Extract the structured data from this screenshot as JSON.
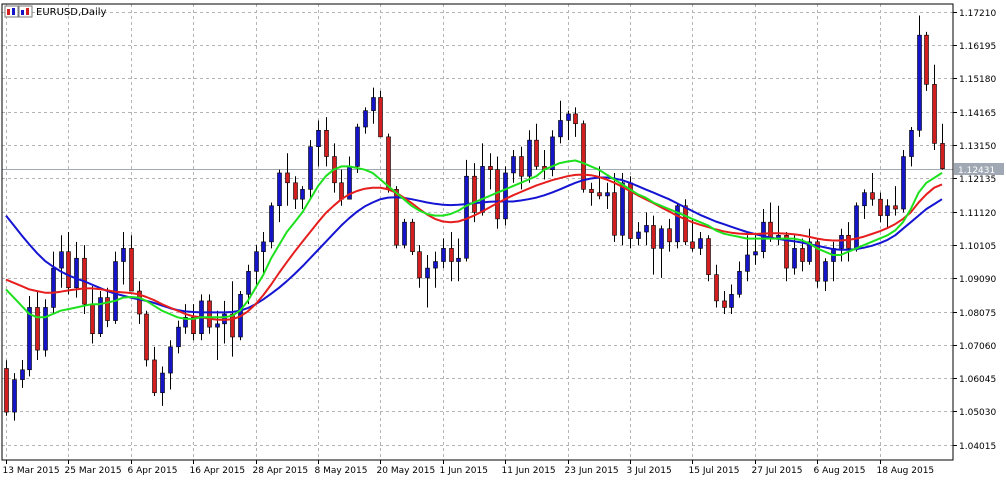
{
  "window": {
    "symbol_title": "EURUSD,Daily",
    "icon": "chart-window-icon"
  },
  "colors": {
    "background": "#ffffff",
    "grid": "#b4b4b4",
    "bull": "#1414c8",
    "bear": "#d21e1e",
    "ma_fast": "#1ee11e",
    "ma_mid": "#e61e1e",
    "ma_slow": "#1414d2",
    "price_line": "#a0a8b4",
    "price_tag_bg": "#a0a8b4",
    "price_tag_text": "#ffffff",
    "text": "#000000"
  },
  "chart_data": {
    "type": "candlestick",
    "title": "EURUSD,Daily",
    "ylim": [
      1.0355,
      1.1745
    ],
    "y_ticks": [
      "1.17210",
      "1.16195",
      "1.15180",
      "1.14165",
      "1.13150",
      "1.12135",
      "1.11120",
      "1.10105",
      "1.09090",
      "1.08075",
      "1.07060",
      "1.06045",
      "1.05030",
      "1.04015"
    ],
    "x_ticks": [
      {
        "label": "13 Mar 2015",
        "bar": 0
      },
      {
        "label": "25 Mar 2015",
        "bar": 8
      },
      {
        "label": "6 Apr 2015",
        "bar": 16
      },
      {
        "label": "16 Apr 2015",
        "bar": 24
      },
      {
        "label": "28 Apr 2015",
        "bar": 32
      },
      {
        "label": "8 May 2015",
        "bar": 40
      },
      {
        "label": "20 May 2015",
        "bar": 48
      },
      {
        "label": "1 Jun 2015",
        "bar": 56
      },
      {
        "label": "11 Jun 2015",
        "bar": 64
      },
      {
        "label": "23 Jun 2015",
        "bar": 72
      },
      {
        "label": "3 Jul 2015",
        "bar": 80
      },
      {
        "label": "15 Jul 2015",
        "bar": 88
      },
      {
        "label": "27 Jul 2015",
        "bar": 96
      },
      {
        "label": "6 Aug 2015",
        "bar": 104
      },
      {
        "label": "18 Aug 2015",
        "bar": 112
      }
    ],
    "current_price": 1.12431,
    "current_price_label": "1.12431",
    "grid": true,
    "candles": [
      [
        1.0634,
        1.0659,
        1.049,
        1.0501
      ],
      [
        1.0501,
        1.062,
        1.0475,
        1.06
      ],
      [
        1.06,
        1.066,
        1.0575,
        1.063
      ],
      [
        1.063,
        1.0855,
        1.061,
        1.082
      ],
      [
        1.082,
        1.087,
        1.066,
        1.069
      ],
      [
        1.069,
        1.0845,
        1.067,
        1.082
      ],
      [
        1.082,
        1.099,
        1.08,
        1.094
      ],
      [
        1.094,
        1.104,
        1.088,
        1.099
      ],
      [
        1.099,
        1.105,
        1.086,
        1.088
      ],
      [
        1.088,
        1.102,
        1.085,
        1.097
      ],
      [
        1.097,
        1.101,
        1.08,
        1.083
      ],
      [
        1.083,
        1.0885,
        1.071,
        1.074
      ],
      [
        1.074,
        1.087,
        1.073,
        1.085
      ],
      [
        1.085,
        1.088,
        1.076,
        1.078
      ],
      [
        1.078,
        1.099,
        1.077,
        1.096
      ],
      [
        1.096,
        1.105,
        1.089,
        1.1
      ],
      [
        1.1,
        1.104,
        1.087,
        1.087
      ],
      [
        1.087,
        1.09,
        1.077,
        1.08
      ],
      [
        1.08,
        1.081,
        1.064,
        1.066
      ],
      [
        1.066,
        1.07,
        1.055,
        1.056
      ],
      [
        1.056,
        1.064,
        1.052,
        1.062
      ],
      [
        1.062,
        1.072,
        1.057,
        1.07
      ],
      [
        1.07,
        1.078,
        1.068,
        1.076
      ],
      [
        1.076,
        1.083,
        1.074,
        1.079
      ],
      [
        1.079,
        1.083,
        1.072,
        1.074
      ],
      [
        1.074,
        1.086,
        1.072,
        1.084
      ],
      [
        1.084,
        1.086,
        1.074,
        1.076
      ],
      [
        1.076,
        1.081,
        1.066,
        1.077
      ],
      [
        1.077,
        1.084,
        1.071,
        1.08
      ],
      [
        1.08,
        1.09,
        1.067,
        1.073
      ],
      [
        1.073,
        1.087,
        1.072,
        1.086
      ],
      [
        1.086,
        1.095,
        1.083,
        1.093
      ],
      [
        1.093,
        1.101,
        1.089,
        1.099
      ],
      [
        1.099,
        1.105,
        1.092,
        1.102
      ],
      [
        1.102,
        1.114,
        1.1,
        1.113
      ],
      [
        1.113,
        1.124,
        1.108,
        1.123
      ],
      [
        1.123,
        1.129,
        1.113,
        1.12
      ],
      [
        1.12,
        1.122,
        1.112,
        1.115
      ],
      [
        1.115,
        1.119,
        1.112,
        1.118
      ],
      [
        1.118,
        1.133,
        1.115,
        1.131
      ],
      [
        1.131,
        1.139,
        1.125,
        1.136
      ],
      [
        1.136,
        1.14,
        1.125,
        1.128
      ],
      [
        1.128,
        1.132,
        1.117,
        1.12
      ],
      [
        1.12,
        1.124,
        1.113,
        1.115
      ],
      [
        1.115,
        1.128,
        1.115,
        1.125
      ],
      [
        1.125,
        1.138,
        1.123,
        1.137
      ],
      [
        1.137,
        1.143,
        1.135,
        1.142
      ],
      [
        1.142,
        1.149,
        1.138,
        1.146
      ],
      [
        1.146,
        1.148,
        1.134,
        1.134
      ],
      [
        1.134,
        1.135,
        1.117,
        1.118
      ],
      [
        1.118,
        1.119,
        1.1,
        1.101
      ],
      [
        1.101,
        1.109,
        1.1,
        1.108
      ],
      [
        1.108,
        1.109,
        1.098,
        1.099
      ],
      [
        1.099,
        1.101,
        1.088,
        1.091
      ],
      [
        1.091,
        1.098,
        1.082,
        1.094
      ],
      [
        1.094,
        1.099,
        1.088,
        1.096
      ],
      [
        1.096,
        1.103,
        1.094,
        1.1
      ],
      [
        1.1,
        1.105,
        1.09,
        1.096
      ],
      [
        1.096,
        1.103,
        1.09,
        1.097
      ],
      [
        1.097,
        1.127,
        1.096,
        1.122
      ],
      [
        1.122,
        1.126,
        1.108,
        1.111
      ],
      [
        1.111,
        1.132,
        1.11,
        1.125
      ],
      [
        1.125,
        1.129,
        1.118,
        1.124
      ],
      [
        1.124,
        1.128,
        1.106,
        1.109
      ],
      [
        1.109,
        1.125,
        1.107,
        1.123
      ],
      [
        1.123,
        1.13,
        1.12,
        1.128
      ],
      [
        1.128,
        1.131,
        1.118,
        1.122
      ],
      [
        1.122,
        1.136,
        1.12,
        1.133
      ],
      [
        1.133,
        1.138,
        1.124,
        1.125
      ],
      [
        1.125,
        1.13,
        1.121,
        1.124
      ],
      [
        1.124,
        1.136,
        1.122,
        1.134
      ],
      [
        1.134,
        1.145,
        1.132,
        1.139
      ],
      [
        1.139,
        1.142,
        1.133,
        1.141
      ],
      [
        1.141,
        1.143,
        1.134,
        1.138
      ],
      [
        1.138,
        1.139,
        1.117,
        1.118
      ],
      [
        1.118,
        1.12,
        1.113,
        1.117
      ],
      [
        1.117,
        1.125,
        1.115,
        1.116
      ],
      [
        1.116,
        1.12,
        1.112,
        1.117
      ],
      [
        1.117,
        1.123,
        1.102,
        1.104
      ],
      [
        1.104,
        1.123,
        1.101,
        1.12
      ],
      [
        1.12,
        1.122,
        1.1,
        1.103
      ],
      [
        1.103,
        1.108,
        1.101,
        1.105
      ],
      [
        1.105,
        1.111,
        1.101,
        1.107
      ],
      [
        1.107,
        1.11,
        1.092,
        1.1
      ],
      [
        1.1,
        1.107,
        1.091,
        1.106
      ],
      [
        1.106,
        1.109,
        1.099,
        1.102
      ],
      [
        1.102,
        1.114,
        1.1,
        1.113
      ],
      [
        1.113,
        1.115,
        1.101,
        1.102
      ],
      [
        1.102,
        1.109,
        1.099,
        1.1
      ],
      [
        1.1,
        1.105,
        1.098,
        1.103
      ],
      [
        1.103,
        1.104,
        1.09,
        1.092
      ],
      [
        1.092,
        1.095,
        1.082,
        1.084
      ],
      [
        1.084,
        1.087,
        1.08,
        1.082
      ],
      [
        1.082,
        1.089,
        1.08,
        1.086
      ],
      [
        1.086,
        1.096,
        1.085,
        1.093
      ],
      [
        1.093,
        1.104,
        1.09,
        1.098
      ],
      [
        1.098,
        1.104,
        1.095,
        1.099
      ],
      [
        1.099,
        1.112,
        1.097,
        1.108
      ],
      [
        1.108,
        1.114,
        1.102,
        1.103
      ],
      [
        1.103,
        1.113,
        1.101,
        1.104
      ],
      [
        1.104,
        1.105,
        1.09,
        1.094
      ],
      [
        1.094,
        1.104,
        1.092,
        1.1
      ],
      [
        1.1,
        1.103,
        1.093,
        1.096
      ],
      [
        1.096,
        1.106,
        1.095,
        1.102
      ],
      [
        1.102,
        1.103,
        1.088,
        1.09
      ],
      [
        1.09,
        1.097,
        1.087,
        1.096
      ],
      [
        1.096,
        1.102,
        1.09,
        1.1
      ],
      [
        1.1,
        1.106,
        1.096,
        1.104
      ],
      [
        1.104,
        1.108,
        1.096,
        1.1
      ],
      [
        1.1,
        1.114,
        1.099,
        1.113
      ],
      [
        1.113,
        1.118,
        1.109,
        1.117
      ],
      [
        1.117,
        1.123,
        1.113,
        1.115
      ],
      [
        1.115,
        1.117,
        1.108,
        1.11
      ],
      [
        1.11,
        1.115,
        1.106,
        1.113
      ],
      [
        1.113,
        1.119,
        1.11,
        1.112
      ],
      [
        1.112,
        1.13,
        1.111,
        1.128
      ],
      [
        1.128,
        1.137,
        1.125,
        1.136
      ],
      [
        1.136,
        1.171,
        1.134,
        1.165
      ],
      [
        1.165,
        1.166,
        1.148,
        1.15
      ],
      [
        1.15,
        1.156,
        1.13,
        1.132
      ],
      [
        1.132,
        1.138,
        1.124,
        1.1243
      ]
    ],
    "ma_fast": [
      1.0875,
      1.085,
      1.0825,
      1.08,
      1.079,
      1.079,
      1.08,
      1.081,
      1.0815,
      1.082,
      1.0825,
      1.083,
      1.083,
      1.0835,
      1.084,
      1.085,
      1.0852,
      1.085,
      1.084,
      1.0825,
      1.081,
      1.08,
      1.079,
      1.0785,
      1.0785,
      1.079,
      1.079,
      1.079,
      1.079,
      1.0795,
      1.081,
      1.084,
      1.088,
      1.092,
      1.097,
      1.101,
      1.105,
      1.108,
      1.111,
      1.115,
      1.119,
      1.122,
      1.124,
      1.125,
      1.125,
      1.1245,
      1.124,
      1.123,
      1.121,
      1.119,
      1.117,
      1.115,
      1.113,
      1.1115,
      1.1105,
      1.11,
      1.11,
      1.1105,
      1.1115,
      1.113,
      1.114,
      1.115,
      1.116,
      1.117,
      1.118,
      1.119,
      1.12,
      1.121,
      1.122,
      1.124,
      1.125,
      1.126,
      1.1265,
      1.1268,
      1.126,
      1.125,
      1.124,
      1.1225,
      1.121,
      1.1195,
      1.118,
      1.1165,
      1.1155,
      1.114,
      1.113,
      1.112,
      1.111,
      1.11,
      1.109,
      1.108,
      1.107,
      1.1055,
      1.1045,
      1.104,
      1.1035,
      1.103,
      1.103,
      1.103,
      1.103,
      1.103,
      1.103,
      1.103,
      1.1025,
      1.1015,
      1.1,
      1.099,
      1.098,
      1.098,
      1.099,
      1.1,
      1.101,
      1.102,
      1.103,
      1.104,
      1.1055,
      1.108,
      1.112,
      1.117,
      1.12,
      1.1215,
      1.123
    ],
    "ma_mid": [
      1.0905,
      1.0895,
      1.0885,
      1.0875,
      1.087,
      1.0865,
      1.0865,
      1.0868,
      1.0872,
      1.0875,
      1.0878,
      1.0878,
      1.0876,
      1.0872,
      1.0868,
      1.0866,
      1.0864,
      1.086,
      1.0852,
      1.0842,
      1.083,
      1.082,
      1.081,
      1.08,
      1.0793,
      1.079,
      1.0786,
      1.0783,
      1.0782,
      1.0784,
      1.0792,
      1.0808,
      1.083,
      1.0858,
      1.089,
      1.0925,
      1.0958,
      1.099,
      1.102,
      1.105,
      1.108,
      1.1108,
      1.113,
      1.115,
      1.1165,
      1.1175,
      1.1182,
      1.1185,
      1.1185,
      1.118,
      1.117,
      1.1155,
      1.1138,
      1.112,
      1.1103,
      1.109,
      1.1082,
      1.108,
      1.1082,
      1.109,
      1.11,
      1.1112,
      1.1125,
      1.1138,
      1.115,
      1.1162,
      1.1172,
      1.1182,
      1.1192,
      1.12,
      1.1208,
      1.1214,
      1.122,
      1.1224,
      1.1225,
      1.1223,
      1.1218,
      1.121,
      1.12,
      1.1188,
      1.1175,
      1.1162,
      1.115,
      1.1138,
      1.1125,
      1.1113,
      1.11,
      1.109,
      1.108,
      1.1072,
      1.1065,
      1.1058,
      1.1052,
      1.1048,
      1.1045,
      1.1044,
      1.1044,
      1.1045,
      1.1046,
      1.1046,
      1.1045,
      1.1043,
      1.104,
      1.1035,
      1.103,
      1.1026,
      1.1024,
      1.1024,
      1.1026,
      1.103,
      1.1036,
      1.1044,
      1.1052,
      1.1062,
      1.1074,
      1.109,
      1.111,
      1.114,
      1.1165,
      1.1185,
      1.1195
    ],
    "ma_slow": [
      1.11,
      1.107,
      1.104,
      1.1012,
      1.0985,
      1.0962,
      1.0945,
      1.093,
      1.0918,
      1.0908,
      1.09,
      1.089,
      1.088,
      1.087,
      1.0862,
      1.0856,
      1.085,
      1.0845,
      1.084,
      1.0834,
      1.0826,
      1.0818,
      1.0812,
      1.0808,
      1.0806,
      1.0805,
      1.0805,
      1.0805,
      1.0805,
      1.0806,
      1.081,
      1.0818,
      1.083,
      1.0845,
      1.0862,
      1.088,
      1.09,
      1.0922,
      1.0945,
      1.097,
      1.0995,
      1.102,
      1.1045,
      1.107,
      1.1092,
      1.1112,
      1.1128,
      1.114,
      1.115,
      1.1155,
      1.1156,
      1.1154,
      1.115,
      1.1145,
      1.114,
      1.1136,
      1.1133,
      1.1132,
      1.1133,
      1.1135,
      1.1138,
      1.114,
      1.1142,
      1.1143,
      1.1143,
      1.1143,
      1.1146,
      1.115,
      1.1155,
      1.1162,
      1.117,
      1.118,
      1.119,
      1.12,
      1.1208,
      1.1213,
      1.1216,
      1.1216,
      1.1213,
      1.1208,
      1.12,
      1.119,
      1.118,
      1.117,
      1.116,
      1.115,
      1.1138,
      1.1126,
      1.1114,
      1.1102,
      1.1092,
      1.1082,
      1.1074,
      1.1066,
      1.1058,
      1.105,
      1.1044,
      1.1038,
      1.1033,
      1.1029,
      1.1025,
      1.1022,
      1.1018,
      1.1013,
      1.1008,
      1.1003,
      1.0998,
      1.0996,
      1.0996,
      1.0998,
      1.1002,
      1.1008,
      1.1016,
      1.1026,
      1.104,
      1.106,
      1.108,
      1.11,
      1.112,
      1.1135,
      1.115
    ]
  }
}
